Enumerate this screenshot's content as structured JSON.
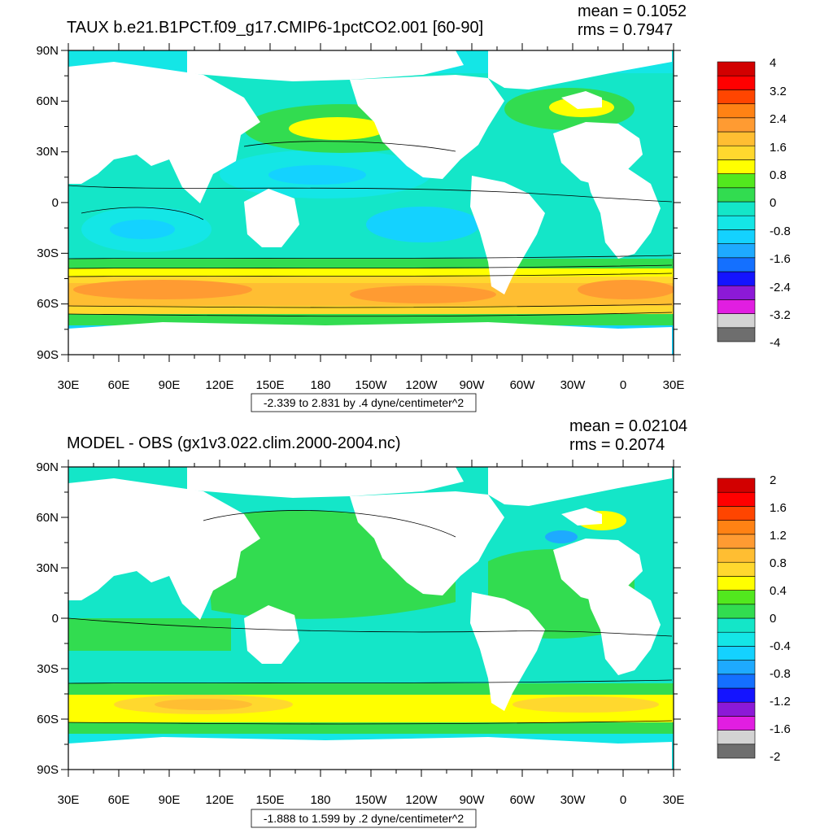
{
  "panels": [
    {
      "title": "TAUX b.e21.B1PCT.f09_g17.CMIP6-1pctCO2.001 [60-90]",
      "mean_label": "mean = 0.1052",
      "rms_label": "rms = 0.7947",
      "info_box": "-2.339 to 2.831 by .4 dyne/centimeter^2",
      "colorbar": {
        "colors": [
          "#6e6e6e",
          "#d3d3d3",
          "#e11ee1",
          "#8c19d7",
          "#1414ff",
          "#1470ff",
          "#1eaaff",
          "#14d2ff",
          "#14e6e6",
          "#14e6c8",
          "#32dc50",
          "#52e81e",
          "#ffff00",
          "#ffd82e",
          "#ffbe32",
          "#ff9b32",
          "#ff8214",
          "#ff4500",
          "#ff0000",
          "#d20000"
        ],
        "labels": [
          "4",
          "3.2",
          "2.4",
          "1.6",
          "0.8",
          "0",
          "-0.8",
          "-1.6",
          "-2.4",
          "-3.2",
          "-4"
        ]
      }
    },
    {
      "title": "MODEL - OBS (gx1v3.022.clim.2000-2004.nc)",
      "mean_label": "mean = 0.02104",
      "rms_label": "rms = 0.2074",
      "info_box": "-1.888 to 1.599 by .2 dyne/centimeter^2",
      "colorbar": {
        "colors": [
          "#6e6e6e",
          "#d3d3d3",
          "#e11ee1",
          "#8c19d7",
          "#1414ff",
          "#1470ff",
          "#1eaaff",
          "#14d2ff",
          "#14e6e6",
          "#14e6c8",
          "#32dc50",
          "#52e81e",
          "#ffff00",
          "#ffd82e",
          "#ffbe32",
          "#ff9b32",
          "#ff8214",
          "#ff4500",
          "#ff0000",
          "#d20000"
        ],
        "labels": [
          "2",
          "1.6",
          "1.2",
          "0.8",
          "0.4",
          "0",
          "-0.4",
          "-0.8",
          "-1.2",
          "-1.6",
          "-2"
        ]
      }
    }
  ],
  "axes": {
    "lat_labels": [
      "90N",
      "60N",
      "30N",
      "0",
      "30S",
      "60S",
      "90S"
    ],
    "lon_labels": [
      "30E",
      "60E",
      "90E",
      "120E",
      "150E",
      "180",
      "150W",
      "120W",
      "90W",
      "60W",
      "30W",
      "0",
      "30E"
    ]
  },
  "colors": {
    "land": "#ffffff",
    "ocean_base": "#14e6c8",
    "frame": "#000000"
  }
}
